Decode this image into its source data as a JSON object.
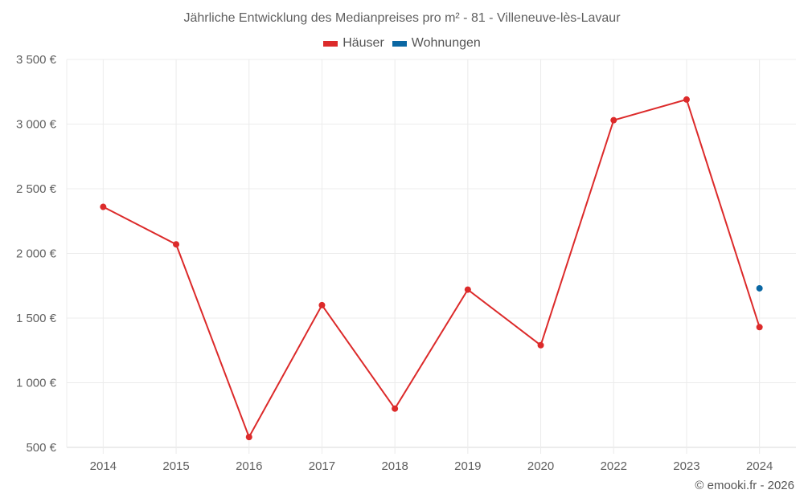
{
  "chart_data": {
    "type": "line",
    "title": "Jährliche Entwicklung des Medianpreises pro m² - 81 - Villeneuve-lès-Lavaur",
    "xlabel": "",
    "ylabel": "",
    "categories": [
      "2014",
      "2015",
      "2016",
      "2017",
      "2018",
      "2019",
      "2020",
      "2022",
      "2023",
      "2024"
    ],
    "series": [
      {
        "name": "Häuser",
        "color": "#dc2a2a",
        "values": [
          2360,
          2070,
          580,
          1600,
          800,
          1720,
          1290,
          3030,
          3190,
          1430
        ]
      },
      {
        "name": "Wohnungen",
        "color": "#0a67a3",
        "values": [
          null,
          null,
          null,
          null,
          null,
          null,
          null,
          null,
          null,
          1730
        ]
      }
    ],
    "ylim": [
      500,
      3500
    ],
    "yticks": [
      500,
      1000,
      1500,
      2000,
      2500,
      3000,
      3500
    ],
    "ytick_labels": [
      "500 €",
      "1 000 €",
      "1 500 €",
      "2 000 €",
      "2 500 €",
      "3 000 €",
      "3 500 €"
    ],
    "grid": true,
    "legend_position": "top"
  },
  "header": {
    "title": "Jährliche Entwicklung des Medianpreises pro m² - 81 - Villeneuve-lès-Lavaur"
  },
  "legend": {
    "items": [
      {
        "label": "Häuser",
        "color": "#dc2a2a"
      },
      {
        "label": "Wohnungen",
        "color": "#0a67a3"
      }
    ]
  },
  "footer": {
    "credit": "© emooki.fr - 2026"
  }
}
